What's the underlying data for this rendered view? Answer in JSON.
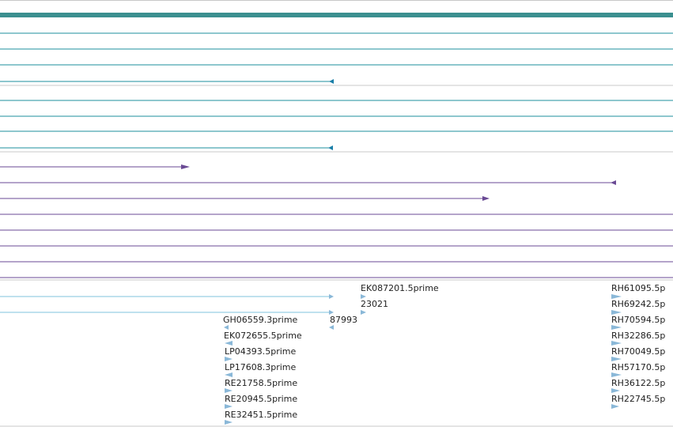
{
  "colors": {
    "border": "#c8c8c8",
    "gene_bar": "#3a8f8f",
    "transcript": "#1e8f9e",
    "transcript_arrow": "#1a7fa8",
    "cds": "#6a4a94",
    "cds_arrow": "#6a4a94",
    "est_line": "#7fc3de",
    "est_arrow": "#8ab8d8",
    "text": "#222222"
  },
  "tracks": {
    "gene": {
      "glyph": "thick-bar"
    },
    "transcripts": [
      {
        "glyph": "line"
      },
      {
        "glyph": "line"
      },
      {
        "glyph": "line"
      },
      {
        "glyph": "line",
        "end": "left-arrow"
      },
      {
        "glyph": "line"
      },
      {
        "glyph": "line"
      },
      {
        "glyph": "line"
      },
      {
        "glyph": "line",
        "end": "left-arrow"
      }
    ],
    "cds": [
      {
        "glyph": "line",
        "end": "right-arrow"
      },
      {
        "glyph": "line",
        "end": "left-arrow"
      },
      {
        "glyph": "line",
        "end": "right-arrow"
      },
      {
        "glyph": "line"
      },
      {
        "glyph": "line"
      },
      {
        "glyph": "line"
      },
      {
        "glyph": "line"
      }
    ],
    "ests": {
      "labels": [
        "EK087201.5prime",
        "23021",
        "87993",
        "GH06559.3prime",
        "EK072655.5prime",
        "LP04393.5prime",
        "LP17608.3prime",
        "RE21758.5prime",
        "RE20945.5prime",
        "RE32451.5prime",
        "RH61095.5p",
        "RH69242.5p",
        "RH70594.5p",
        "RH32286.5p",
        "RH70049.5p",
        "RH57170.5p",
        "RH36122.5p",
        "RH22745.5p"
      ]
    }
  }
}
